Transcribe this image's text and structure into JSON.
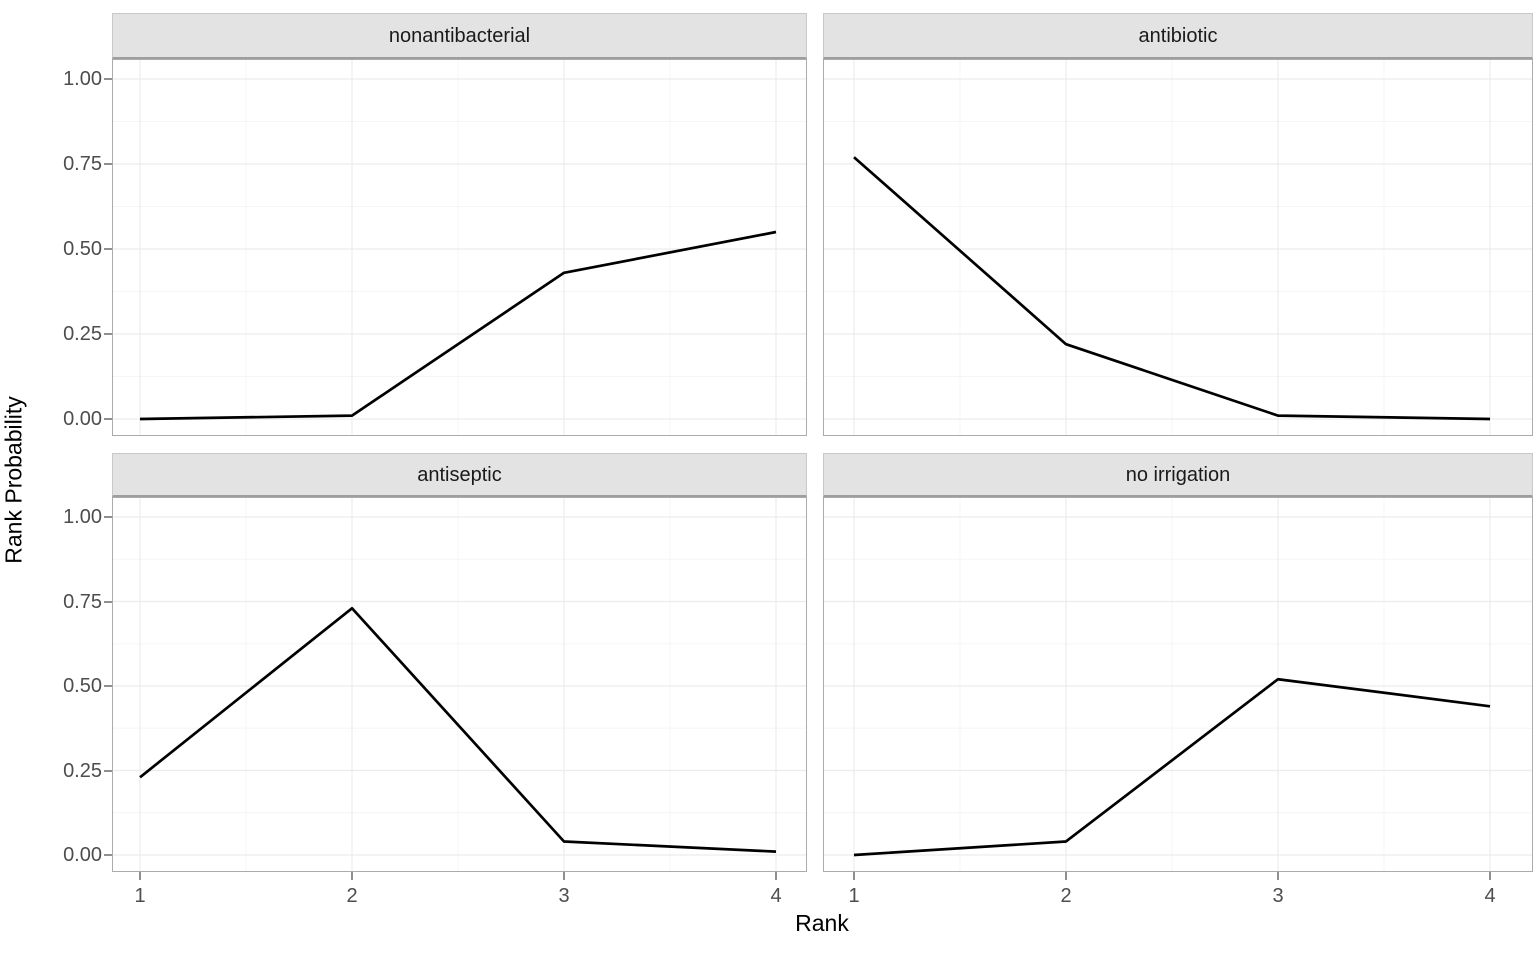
{
  "chart_data": {
    "type": "line",
    "title": "",
    "xlabel": "Rank",
    "ylabel": "Rank Probability",
    "x": [
      1,
      2,
      3,
      4
    ],
    "x_tick_labels": [
      "1",
      "2",
      "3",
      "4"
    ],
    "y_ticks": [
      0.0,
      0.25,
      0.5,
      0.75,
      1.0
    ],
    "y_tick_labels": [
      "0.00",
      "0.25",
      "0.50",
      "0.75",
      "1.00"
    ],
    "ylim": [
      0,
      1.05
    ],
    "grid": "major and minor gridlines, very light grey, on white panels",
    "legend": "none",
    "facets": [
      {
        "label": "nonantibacterial",
        "values": [
          0.0,
          0.01,
          0.43,
          0.55
        ]
      },
      {
        "label": "antibiotic",
        "values": [
          0.77,
          0.22,
          0.01,
          0.0
        ]
      },
      {
        "label": "antiseptic",
        "values": [
          0.23,
          0.73,
          0.04,
          0.01
        ]
      },
      {
        "label": "no irrigation",
        "values": [
          0.0,
          0.04,
          0.52,
          0.44
        ]
      }
    ],
    "colors": {
      "line": "#000000",
      "strip_background": "#e3e3e3",
      "strip_border": "#c9c9c9",
      "strip_bottom_border": "#9e9e9e",
      "panel_border": "#ababab",
      "grid_major": "#ececec",
      "grid_minor": "#f5f5f5",
      "tick_label": "#4d4d4d",
      "axis_title": "#000000"
    }
  }
}
